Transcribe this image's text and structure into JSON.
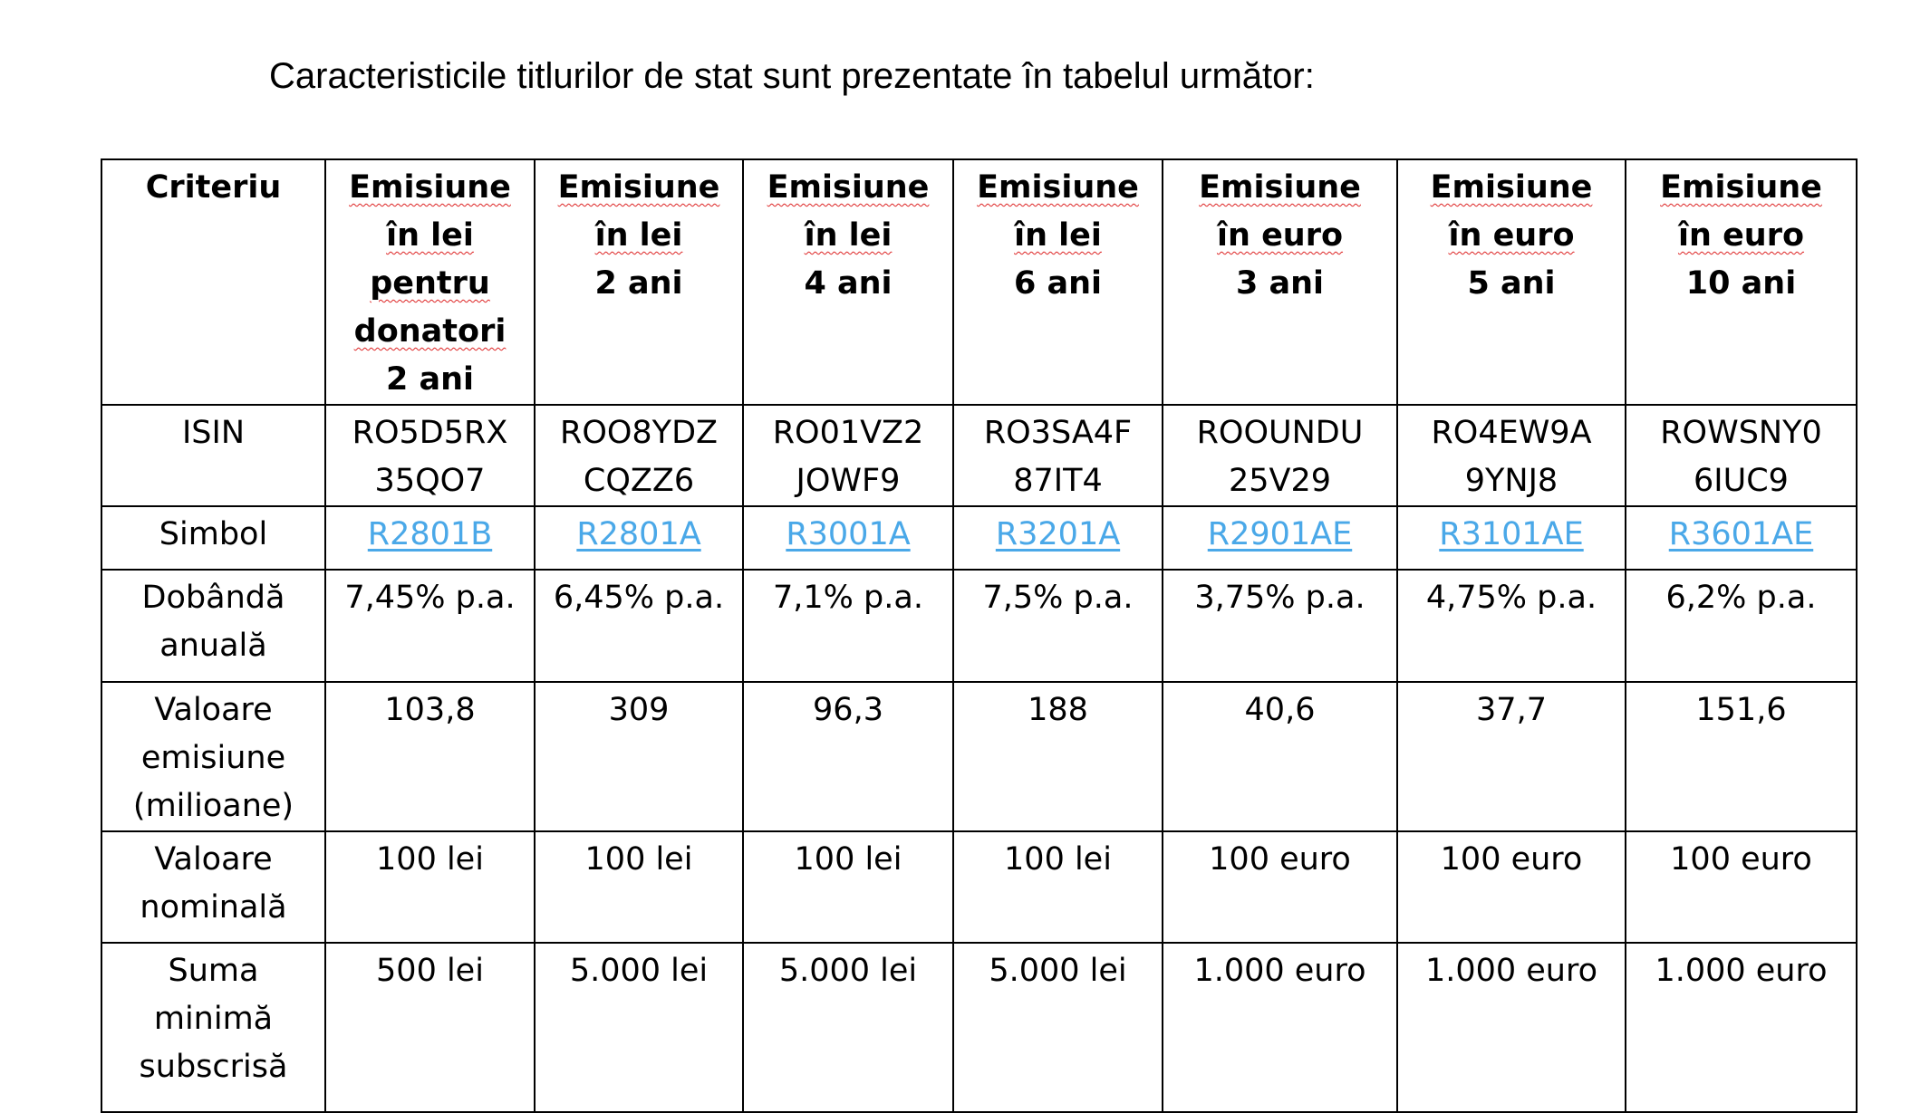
{
  "title": "Caracteristicile titlurilor de stat sunt prezentate în tabelul următor:",
  "table": {
    "criteria_header": "Criteriu",
    "columns": [
      {
        "lines": [
          "Emisiune",
          "în lei",
          "pentru",
          "donatori",
          "2 ani"
        ]
      },
      {
        "lines": [
          "Emisiune",
          "în lei",
          "2 ani"
        ]
      },
      {
        "lines": [
          "Emisiune",
          "în lei",
          "4 ani"
        ]
      },
      {
        "lines": [
          "Emisiune",
          "în lei",
          "6 ani"
        ]
      },
      {
        "lines": [
          "Emisiune",
          "în euro",
          "3 ani"
        ]
      },
      {
        "lines": [
          "Emisiune",
          "în euro",
          "5 ani"
        ]
      },
      {
        "lines": [
          "Emisiune",
          "în euro",
          "10 ani"
        ]
      }
    ],
    "rows": [
      {
        "label": "ISIN",
        "cells": [
          "RO5D5RX 35QO7",
          "ROO8YDZ CQZZ6",
          "RO01VZ2 JOWF9",
          "RO3SA4F 87IT4",
          "ROOUNDU 25V29",
          "RO4EW9A 9YNJ8",
          "ROWSNY0 6IUC9"
        ]
      },
      {
        "label": "Simbol",
        "links": true,
        "cells": [
          "R2801B",
          "R2801A",
          "R3001A",
          "R3201A",
          "R2901AE",
          "R3101AE",
          "R3601AE"
        ]
      },
      {
        "label": "Dobândă anuală",
        "cells": [
          "7,45% p.a.",
          "6,45% p.a.",
          "7,1% p.a.",
          "7,5% p.a.",
          "3,75% p.a.",
          "4,75% p.a.",
          "6,2% p.a."
        ]
      },
      {
        "label": "Valoare emisiune (milioane)",
        "cells": [
          "103,8",
          "309",
          "96,3",
          "188",
          "40,6",
          "37,7",
          "151,6"
        ]
      },
      {
        "label": "Valoare nominală",
        "cells": [
          "100 lei",
          "100 lei",
          "100 lei",
          "100 lei",
          "100 euro",
          "100 euro",
          "100 euro"
        ]
      },
      {
        "label": "Suma minimă subscrisă",
        "cells": [
          "500 lei",
          "5.000 lei",
          "5.000 lei",
          "5.000 lei",
          "1.000 euro",
          "1.000 euro",
          "1.000 euro"
        ]
      }
    ],
    "link_color": "#4aa8e8"
  }
}
